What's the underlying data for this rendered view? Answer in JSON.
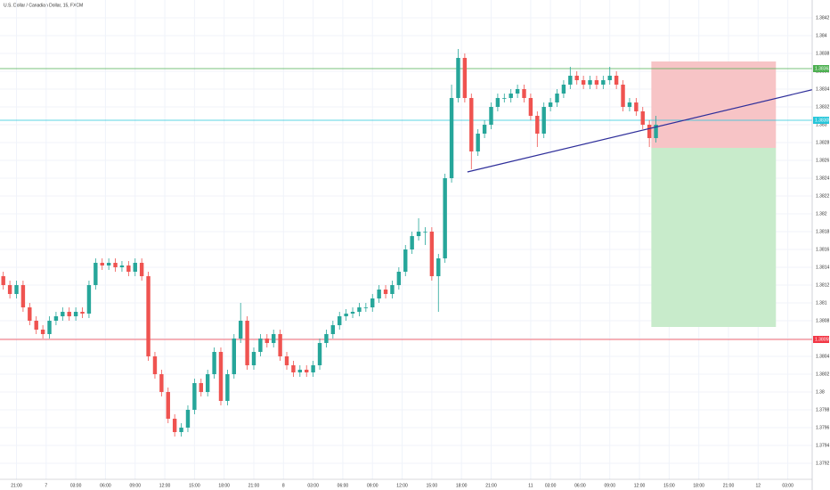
{
  "chart_data": {
    "type": "candlestick",
    "title": "U.S. Dollar / Canadian Dollar, 15, FXCM",
    "up_color": "#26a69a",
    "down_color": "#ef5350",
    "grid": true,
    "xlim": [
      -0.5,
      122.7
    ],
    "xticks": [
      {
        "value": 2,
        "label": "21:00"
      },
      {
        "value": 6.5,
        "label": "7"
      },
      {
        "value": 11,
        "label": "03:00"
      },
      {
        "value": 15.5,
        "label": "06:00"
      },
      {
        "value": 20,
        "label": "09:00"
      },
      {
        "value": 24.5,
        "label": "12:00"
      },
      {
        "value": 29,
        "label": "15:00"
      },
      {
        "value": 33.5,
        "label": "18:00"
      },
      {
        "value": 38,
        "label": "21:00"
      },
      {
        "value": 42.5,
        "label": "8"
      },
      {
        "value": 47,
        "label": "03:00"
      },
      {
        "value": 51.5,
        "label": "06:00"
      },
      {
        "value": 56,
        "label": "09:00"
      },
      {
        "value": 60.5,
        "label": "12:00"
      },
      {
        "value": 65,
        "label": "15:00"
      },
      {
        "value": 69.5,
        "label": "18:00"
      },
      {
        "value": 74,
        "label": "21:00"
      },
      {
        "value": 80,
        "label": "11"
      },
      {
        "value": 83,
        "label": "03:00"
      },
      {
        "value": 87.5,
        "label": "06:00"
      },
      {
        "value": 92,
        "label": "09:00"
      },
      {
        "value": 96.5,
        "label": "12:00"
      },
      {
        "value": 101,
        "label": "15:00"
      },
      {
        "value": 105.5,
        "label": "18:00"
      },
      {
        "value": 110,
        "label": "21:00"
      },
      {
        "value": 114.5,
        "label": "12"
      },
      {
        "value": 119,
        "label": "03:00"
      }
    ],
    "ylim": [
      1.37902,
      1.3844
    ],
    "yticks": [
      1.3792,
      1.3794,
      1.3796,
      1.3798,
      1.38,
      1.3802,
      1.3804,
      1.3806,
      1.3808,
      1.381,
      1.3812,
      1.3814,
      1.3816,
      1.3818,
      1.382,
      1.3822,
      1.3824,
      1.3826,
      1.3828,
      1.383,
      1.3832,
      1.3834,
      1.3836,
      1.3838,
      1.384,
      1.3842
    ],
    "ohlc": [
      [
        1.3813,
        1.38135,
        1.38115,
        1.3812
      ],
      [
        1.3812,
        1.38125,
        1.38105,
        1.3811
      ],
      [
        1.3811,
        1.38125,
        1.38105,
        1.3812
      ],
      [
        1.3812,
        1.38125,
        1.3809,
        1.38095
      ],
      [
        1.38095,
        1.381,
        1.38075,
        1.3808
      ],
      [
        1.3808,
        1.38085,
        1.38065,
        1.3807
      ],
      [
        1.3807,
        1.38075,
        1.3806,
        1.38065
      ],
      [
        1.38065,
        1.38085,
        1.3806,
        1.3808
      ],
      [
        1.3808,
        1.3809,
        1.38075,
        1.38085
      ],
      [
        1.38085,
        1.38095,
        1.3808,
        1.3809
      ],
      [
        1.3809,
        1.38095,
        1.3808,
        1.38085
      ],
      [
        1.38085,
        1.38095,
        1.3808,
        1.3809
      ],
      [
        1.3809,
        1.38095,
        1.38083,
        1.38088
      ],
      [
        1.38088,
        1.38125,
        1.38083,
        1.3812
      ],
      [
        1.3812,
        1.3815,
        1.38115,
        1.38145
      ],
      [
        1.38145,
        1.3815,
        1.38137,
        1.38142
      ],
      [
        1.38142,
        1.3815,
        1.38137,
        1.38145
      ],
      [
        1.38145,
        1.3815,
        1.38135,
        1.3814
      ],
      [
        1.3814,
        1.38147,
        1.38135,
        1.38142
      ],
      [
        1.38142,
        1.38147,
        1.3813,
        1.38135
      ],
      [
        1.38135,
        1.3815,
        1.3813,
        1.38145
      ],
      [
        1.38145,
        1.3815,
        1.38125,
        1.3813
      ],
      [
        1.3813,
        1.38135,
        1.38035,
        1.3804
      ],
      [
        1.3804,
        1.38045,
        1.38015,
        1.3802
      ],
      [
        1.3802,
        1.38025,
        1.37995,
        1.38
      ],
      [
        1.38,
        1.38005,
        1.37965,
        1.3797
      ],
      [
        1.3797,
        1.37975,
        1.3795,
        1.37955
      ],
      [
        1.37955,
        1.37965,
        1.3795,
        1.3796
      ],
      [
        1.3796,
        1.37985,
        1.37955,
        1.3798
      ],
      [
        1.3798,
        1.38015,
        1.37975,
        1.3801
      ],
      [
        1.3801,
        1.38015,
        1.37995,
        1.38
      ],
      [
        1.38,
        1.38025,
        1.37995,
        1.3802
      ],
      [
        1.3802,
        1.3805,
        1.38015,
        1.38045
      ],
      [
        1.38045,
        1.3805,
        1.37985,
        1.3799
      ],
      [
        1.3799,
        1.38025,
        1.37985,
        1.3802
      ],
      [
        1.3802,
        1.38065,
        1.38015,
        1.3806
      ],
      [
        1.3806,
        1.381,
        1.38055,
        1.3808
      ],
      [
        1.3808,
        1.38085,
        1.38025,
        1.3803
      ],
      [
        1.3803,
        1.3805,
        1.38025,
        1.38045
      ],
      [
        1.38045,
        1.38065,
        1.3804,
        1.3806
      ],
      [
        1.3806,
        1.38065,
        1.3805,
        1.38055
      ],
      [
        1.38055,
        1.3807,
        1.3805,
        1.38065
      ],
      [
        1.38065,
        1.3807,
        1.38035,
        1.3804
      ],
      [
        1.3804,
        1.38045,
        1.38025,
        1.3803
      ],
      [
        1.3803,
        1.38035,
        1.38017,
        1.38022
      ],
      [
        1.38022,
        1.3803,
        1.38017,
        1.38025
      ],
      [
        1.38025,
        1.3803,
        1.38017,
        1.38022
      ],
      [
        1.38022,
        1.38035,
        1.38017,
        1.3803
      ],
      [
        1.3803,
        1.3806,
        1.38025,
        1.38055
      ],
      [
        1.38055,
        1.3807,
        1.3805,
        1.38065
      ],
      [
        1.38065,
        1.3808,
        1.3806,
        1.38075
      ],
      [
        1.38075,
        1.3809,
        1.3807,
        1.38085
      ],
      [
        1.38085,
        1.38093,
        1.3808,
        1.38088
      ],
      [
        1.38088,
        1.38095,
        1.38083,
        1.3809
      ],
      [
        1.3809,
        1.381,
        1.38085,
        1.38095
      ],
      [
        1.38095,
        1.381,
        1.3809,
        1.38095
      ],
      [
        1.38095,
        1.3811,
        1.3809,
        1.38105
      ],
      [
        1.38105,
        1.3812,
        1.381,
        1.38115
      ],
      [
        1.38115,
        1.3812,
        1.38105,
        1.3811
      ],
      [
        1.3811,
        1.38125,
        1.38105,
        1.3812
      ],
      [
        1.3812,
        1.3814,
        1.38115,
        1.38135
      ],
      [
        1.38135,
        1.38165,
        1.3813,
        1.3816
      ],
      [
        1.3816,
        1.3818,
        1.38155,
        1.38175
      ],
      [
        1.38175,
        1.38195,
        1.3817,
        1.3818
      ],
      [
        1.3818,
        1.38185,
        1.38165,
        1.3818
      ],
      [
        1.3818,
        1.38185,
        1.38125,
        1.3813
      ],
      [
        1.3813,
        1.38155,
        1.3809,
        1.3815
      ],
      [
        1.3815,
        1.38245,
        1.38145,
        1.3824
      ],
      [
        1.3824,
        1.38345,
        1.38235,
        1.3833
      ],
      [
        1.3833,
        1.38385,
        1.38325,
        1.38375
      ],
      [
        1.38375,
        1.3838,
        1.38325,
        1.3833
      ],
      [
        1.3833,
        1.38335,
        1.3825,
        1.3827
      ],
      [
        1.3827,
        1.38295,
        1.38265,
        1.3829
      ],
      [
        1.3829,
        1.38305,
        1.38285,
        1.383
      ],
      [
        1.383,
        1.38325,
        1.38295,
        1.3832
      ],
      [
        1.3832,
        1.38335,
        1.38315,
        1.3833
      ],
      [
        1.3833,
        1.38335,
        1.38325,
        1.3833
      ],
      [
        1.3833,
        1.3834,
        1.38325,
        1.38335
      ],
      [
        1.38335,
        1.38345,
        1.3833,
        1.3834
      ],
      [
        1.3834,
        1.38345,
        1.38325,
        1.3833
      ],
      [
        1.3833,
        1.38335,
        1.38305,
        1.3831
      ],
      [
        1.3831,
        1.38315,
        1.38275,
        1.3829
      ],
      [
        1.3829,
        1.38325,
        1.38285,
        1.3832
      ],
      [
        1.3832,
        1.3833,
        1.38315,
        1.38325
      ],
      [
        1.38325,
        1.3834,
        1.3832,
        1.38335
      ],
      [
        1.38335,
        1.3835,
        1.3833,
        1.38345
      ],
      [
        1.38345,
        1.38365,
        1.3834,
        1.38355
      ],
      [
        1.38355,
        1.3836,
        1.38345,
        1.3835
      ],
      [
        1.3835,
        1.38355,
        1.3834,
        1.38345
      ],
      [
        1.38345,
        1.38355,
        1.3834,
        1.3835
      ],
      [
        1.3835,
        1.38355,
        1.3834,
        1.38345
      ],
      [
        1.38345,
        1.38355,
        1.3834,
        1.3835
      ],
      [
        1.3835,
        1.38365,
        1.38345,
        1.38355
      ],
      [
        1.38355,
        1.3836,
        1.3834,
        1.38345
      ],
      [
        1.38345,
        1.3835,
        1.38315,
        1.3832
      ],
      [
        1.3832,
        1.3833,
        1.38315,
        1.38325
      ],
      [
        1.38325,
        1.3833,
        1.3831,
        1.38315
      ],
      [
        1.38315,
        1.3832,
        1.38295,
        1.383
      ],
      [
        1.383,
        1.38305,
        1.38275,
        1.38285
      ],
      [
        1.38285,
        1.3831,
        1.3828,
        1.383
      ]
    ],
    "levels": [
      {
        "value": 1.38363,
        "color": "#4caf50"
      },
      {
        "value": 1.38305,
        "color": "#26c6da"
      },
      {
        "value": 1.38059,
        "color": "#f23645"
      }
    ],
    "position": {
      "x": [
        98.3,
        117.2
      ],
      "stop": 1.38371,
      "entry": 1.38274,
      "target": 1.38073,
      "stop_color": "#f7c4c6",
      "target_color": "#c8ebcb"
    },
    "trendline": {
      "x": [
        70.4,
        123.1
      ],
      "y": [
        1.38247,
        1.3834
      ],
      "color": "#2e2e9a"
    }
  }
}
